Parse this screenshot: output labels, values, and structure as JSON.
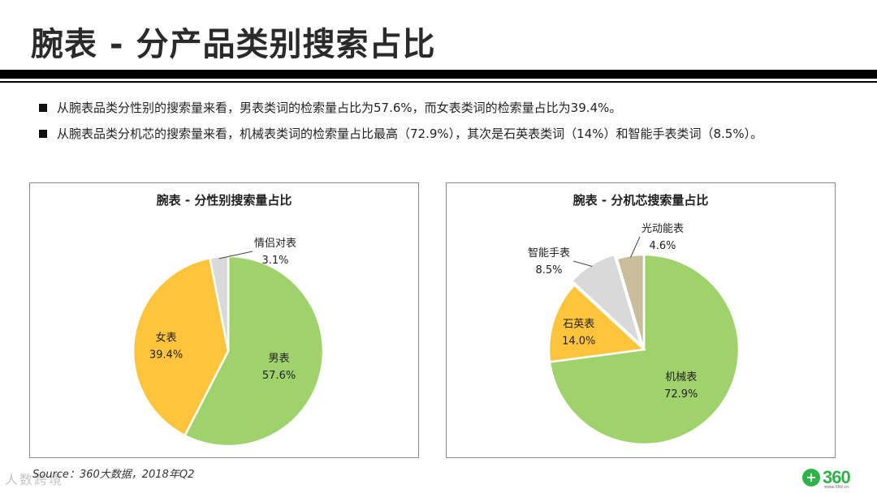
{
  "page": {
    "title": "腕表 - 分产品类别搜索占比",
    "bullets": [
      "从腕表品类分性别的搜索量来看，男表类词的检索量占比为57.6%，而女表类词的检索量占比为39.4%。",
      "从腕表品类分机芯的搜索量来看，机械表类词的检索量占比最高（72.9%），其次是石英表类词（14%）和智能手表类词（8.5%）。"
    ],
    "source": "Source：360大数据，2018年Q2",
    "watermark": "人数跨境",
    "logo": {
      "mark": "+",
      "text": "360",
      "url": "www.360.cn"
    }
  },
  "chart_data": [
    {
      "type": "pie",
      "title": "腕表 - 分性别搜索量占比",
      "slices": [
        {
          "label": "男表",
          "value": 57.6,
          "value_label": "57.6%",
          "color": "#9fd26a"
        },
        {
          "label": "女表",
          "value": 39.4,
          "value_label": "39.4%",
          "color": "#ffc43c"
        },
        {
          "label": "情侣对表",
          "value": 3.1,
          "value_label": "3.1%",
          "color": "#d9d9d9"
        }
      ]
    },
    {
      "type": "pie",
      "title": "腕表 - 分机芯搜索量占比",
      "slices": [
        {
          "label": "机械表",
          "value": 72.9,
          "value_label": "72.9%",
          "color": "#9fd26a"
        },
        {
          "label": "石英表",
          "value": 14.0,
          "value_label": "14.0%",
          "color": "#ffc43c"
        },
        {
          "label": "智能手表",
          "value": 8.5,
          "value_label": "8.5%",
          "color": "#d9d9d9"
        },
        {
          "label": "光动能表",
          "value": 4.6,
          "value_label": "4.6%",
          "color": "#c9bd9c"
        }
      ]
    }
  ]
}
